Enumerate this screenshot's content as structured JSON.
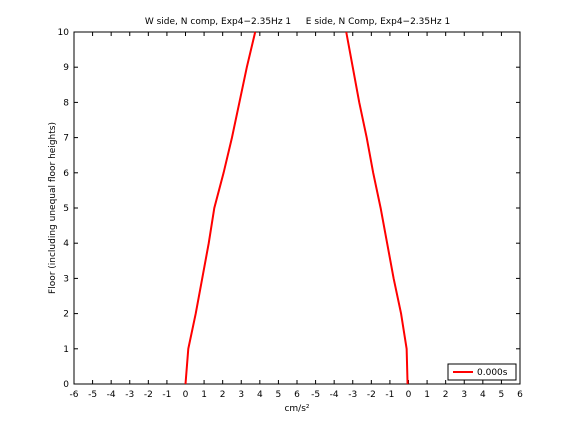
{
  "chart_data": {
    "type": "line",
    "titles": [
      "W side, N comp, Exp4−2.35Hz 1",
      "E side, N Comp, Exp4−2.35Hz 1"
    ],
    "xlabel": "cm/s²",
    "ylabel": "Floor (including unequal floor heights)",
    "y": [
      0,
      1,
      2,
      3,
      4,
      5,
      6,
      7,
      8,
      9,
      10
    ],
    "series": [
      {
        "name": "0.000s",
        "color": "#ff0000",
        "x": [
          0.0,
          0.15,
          0.55,
          0.9,
          1.25,
          1.55,
          2.05,
          2.5,
          2.9,
          3.3,
          3.75
        ]
      },
      {
        "color": "#ff0000",
        "x": [
          11.95,
          11.9,
          11.6,
          11.2,
          10.85,
          10.5,
          10.1,
          9.75,
          9.35,
          9.0,
          8.65
        ]
      }
    ],
    "xlim": [
      -6,
      18
    ],
    "ylim": [
      0,
      10
    ],
    "xticks": [
      {
        "value": -6,
        "label": "-6"
      },
      {
        "value": -5,
        "label": "-5"
      },
      {
        "value": -4,
        "label": "-4"
      },
      {
        "value": -3,
        "label": "-3"
      },
      {
        "value": -2,
        "label": "-2"
      },
      {
        "value": -1,
        "label": "-1"
      },
      0,
      1,
      2,
      3,
      4,
      5,
      {
        "value": 6,
        "label": "6"
      },
      {
        "value": 7,
        "label": "-5"
      },
      {
        "value": 8,
        "label": "-4"
      },
      {
        "value": 9,
        "label": "-3"
      },
      {
        "value": 10,
        "label": "-2"
      },
      {
        "value": 11,
        "label": "-1"
      },
      {
        "value": 12,
        "label": "0"
      },
      {
        "value": 13,
        "label": "1"
      },
      {
        "value": 14,
        "label": "2"
      },
      {
        "value": 15,
        "label": "3"
      },
      {
        "value": 16,
        "label": "4"
      },
      {
        "value": 17,
        "label": "5"
      },
      {
        "value": 18,
        "label": "6"
      }
    ],
    "yticks": [
      0,
      1,
      2,
      3,
      4,
      5,
      6,
      7,
      8,
      9,
      10
    ],
    "legend_position": "lower right"
  }
}
